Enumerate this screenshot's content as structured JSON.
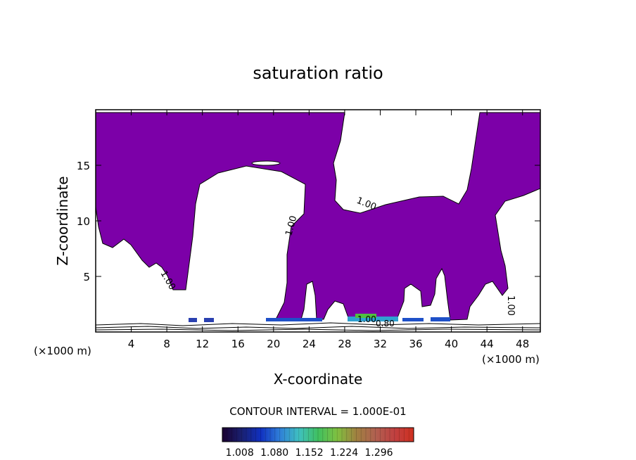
{
  "chart_data": {
    "type": "contour",
    "title": "saturation ratio",
    "xlabel": "X-coordinate",
    "ylabel": "Z-coordinate",
    "x_unit": "(×1000 m)",
    "x_unit_right": "(×1000 m)",
    "xlim": [
      0,
      50
    ],
    "ylim": [
      0,
      20
    ],
    "x_ticks": [
      4,
      8,
      12,
      16,
      20,
      24,
      28,
      32,
      36,
      40,
      44,
      48
    ],
    "y_ticks": [
      5,
      10,
      15
    ],
    "contour_labels": [
      "1.00",
      "1.00",
      "1.00",
      "1.00",
      "1.00",
      "0.80"
    ],
    "contour_interval": "CONTOUR INTERVAL = 1.000E-01",
    "colorbar_ticks": [
      "1.008",
      "1.080",
      "1.152",
      "1.224",
      "1.296"
    ],
    "colors": {
      "fill": "#7c00a8",
      "colorbar": [
        "#1a0030",
        "#1a2070",
        "#1030c0",
        "#2f7fd8",
        "#3fc0c0",
        "#40c060",
        "#80c040",
        "#a08040",
        "#b06050",
        "#c04040",
        "#d03020"
      ]
    }
  }
}
